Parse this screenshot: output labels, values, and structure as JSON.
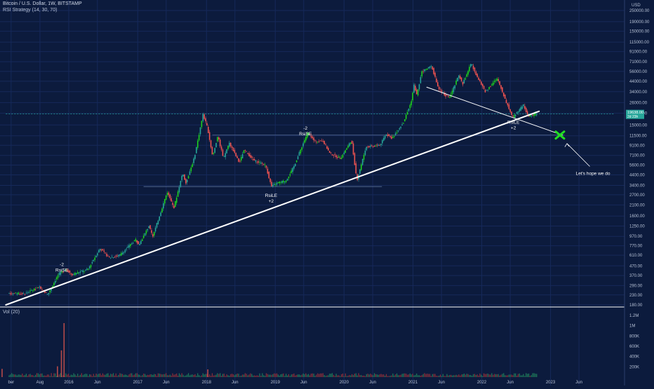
{
  "header": {
    "symbol_line": "Bitcoin / U.S. Dollar, 1W, BITSTAMP",
    "indicator_line": "RSI Strategy (14, 30, 70)"
  },
  "volume_label": "Vol (20)",
  "colors": {
    "background": "#0c1b3d",
    "grid": "#16295a",
    "up": "#26a69a",
    "up_bright": "#1dd21d",
    "down": "#ef5350",
    "trendline": "#ffffff",
    "price_tag": "#26a69a",
    "target_marker": "#22dd22"
  },
  "chart_data": {
    "type": "candlestick",
    "title": "Bitcoin / U.S. Dollar, 1W, BITSTAMP",
    "price_axis": {
      "currency": "USD",
      "scale": "log",
      "ticks": [
        "250000.00",
        "190000.00",
        "150000.00",
        "115000.00",
        "91000.00",
        "71000.00",
        "56000.00",
        "44000.00",
        "34000.00",
        "26000.00",
        "20000.00",
        "15000.00",
        "11500.00",
        "9100.00",
        "7100.00",
        "5600.00",
        "4400.00",
        "3400.00",
        "2700.00",
        "2100.00",
        "1600.00",
        "1250.00",
        "970.00",
        "770.00",
        "610.00",
        "470.00",
        "370.00",
        "290.00",
        "230.00",
        "180.00"
      ],
      "tick_values": [
        250000,
        190000,
        150000,
        115000,
        91000,
        71000,
        56000,
        44000,
        34000,
        26000,
        20000,
        15000,
        11500,
        9100,
        7100,
        5600,
        4400,
        3400,
        2700,
        2100,
        1600,
        1250,
        970,
        770,
        610,
        470,
        370,
        290,
        230,
        180
      ]
    },
    "volume_axis": {
      "ticks": [
        "1.2M",
        "1M",
        "800K",
        "600K",
        "400K",
        "200K"
      ],
      "tick_values": [
        1200000,
        1000000,
        800000,
        600000,
        400000,
        200000
      ]
    },
    "time_axis": {
      "labels": [
        "ber",
        "Aug",
        "2016",
        "Jun",
        "2017",
        "Jun",
        "2018",
        "Jun",
        "2019",
        "Jun",
        "2020",
        "Jun",
        "2021",
        "Jun",
        "2022",
        "Jun",
        "2023",
        "Jun"
      ],
      "label_dates": [
        "2015-03-01",
        "2015-08-01",
        "2016-01-01",
        "2016-06-01",
        "2017-01-01",
        "2017-06-01",
        "2018-01-01",
        "2018-06-01",
        "2019-01-01",
        "2019-06-01",
        "2020-01-01",
        "2020-06-01",
        "2021-01-01",
        "2021-06-01",
        "2022-01-01",
        "2022-06-01",
        "2023-01-01",
        "2023-06-01"
      ]
    },
    "last_price": "19638.00",
    "last_price_value": 19638,
    "countdown": "2d 23h",
    "price_path": [
      [
        "2015-02-15",
        240
      ],
      [
        "2015-05-15",
        236
      ],
      [
        "2015-08-01",
        280
      ],
      [
        "2015-09-15",
        232
      ],
      [
        "2015-11-10",
        380
      ],
      [
        "2015-12-20",
        430
      ],
      [
        "2016-01-20",
        380
      ],
      [
        "2016-04-15",
        430
      ],
      [
        "2016-06-18",
        720
      ],
      [
        "2016-08-05",
        575
      ],
      [
        "2016-10-01",
        610
      ],
      [
        "2016-12-25",
        900
      ],
      [
        "2017-01-10",
        780
      ],
      [
        "2017-03-05",
        1250
      ],
      [
        "2017-03-25",
        960
      ],
      [
        "2017-06-10",
        2900
      ],
      [
        "2017-07-15",
        1950
      ],
      [
        "2017-09-01",
        4700
      ],
      [
        "2017-09-15",
        3500
      ],
      [
        "2017-11-01",
        6700
      ],
      [
        "2017-12-17",
        19500
      ],
      [
        "2018-01-10",
        14000
      ],
      [
        "2018-02-06",
        6900
      ],
      [
        "2018-03-05",
        11400
      ],
      [
        "2018-04-05",
        6600
      ],
      [
        "2018-05-05",
        9700
      ],
      [
        "2018-06-28",
        5900
      ],
      [
        "2018-07-24",
        8200
      ],
      [
        "2018-09-10",
        6300
      ],
      [
        "2018-11-14",
        5600
      ],
      [
        "2018-12-15",
        3300
      ],
      [
        "2019-01-15",
        3600
      ],
      [
        "2019-03-01",
        3800
      ],
      [
        "2019-04-10",
        5200
      ],
      [
        "2019-06-26",
        12600
      ],
      [
        "2019-08-01",
        10000
      ],
      [
        "2019-09-15",
        10200
      ],
      [
        "2019-10-20",
        7500
      ],
      [
        "2019-12-17",
        6600
      ],
      [
        "2020-02-13",
        10300
      ],
      [
        "2020-03-13",
        3850
      ],
      [
        "2020-04-30",
        8700
      ],
      [
        "2020-07-15",
        9200
      ],
      [
        "2020-08-15",
        12000
      ],
      [
        "2020-09-15",
        10800
      ],
      [
        "2020-11-15",
        16000
      ],
      [
        "2020-12-25",
        26000
      ],
      [
        "2021-01-10",
        40000
      ],
      [
        "2021-01-25",
        31000
      ],
      [
        "2021-02-20",
        56000
      ],
      [
        "2021-04-14",
        63500
      ],
      [
        "2021-05-19",
        37000
      ],
      [
        "2021-06-22",
        31000
      ],
      [
        "2021-07-20",
        30000
      ],
      [
        "2021-09-05",
        51000
      ],
      [
        "2021-09-25",
        41000
      ],
      [
        "2021-11-10",
        68500
      ],
      [
        "2021-12-15",
        47000
      ],
      [
        "2022-01-24",
        34000
      ],
      [
        "2022-03-28",
        47500
      ],
      [
        "2022-05-12",
        27000
      ],
      [
        "2022-06-18",
        18000
      ],
      [
        "2022-08-14",
        24500
      ],
      [
        "2022-09-06",
        18600
      ],
      [
        "2022-10-20",
        19600
      ]
    ],
    "volume_spikes": [
      {
        "date": "2015-12-07",
        "value": 1050000
      },
      {
        "date": "2015-11-23",
        "value": 520000
      },
      {
        "date": "2015-11-02",
        "value": 210000
      },
      {
        "date": "2015-01-12",
        "value": 160000
      },
      {
        "date": "2018-01-08",
        "value": 150000
      }
    ],
    "volume_baseline": 60000,
    "annotations": [
      {
        "lines": [
          "-2",
          "RsiSE"
        ],
        "date": "2015-11-25",
        "price": 470
      },
      {
        "lines": [
          "-2",
          "RsiSE"
        ],
        "date": "2019-06-10",
        "price": 13400
      },
      {
        "lines": [
          "RsiLE",
          "+2"
        ],
        "date": "2018-12-10",
        "price": 2550
      },
      {
        "lines": [
          "RsiLE",
          "+2"
        ],
        "date": "2022-06-18",
        "price": 15500
      },
      {
        "lines": [
          "Let's hope we do"
        ],
        "date": "2023-05-15",
        "price": 4400
      }
    ],
    "trendlines": [
      {
        "from": {
          "date": "2015-02-01",
          "price": 180
        },
        "to": {
          "date": "2022-11-01",
          "price": 21000
        },
        "color": "#ffffff",
        "width": 2
      },
      {
        "from": {
          "date": "2021-03-15",
          "price": 38000
        },
        "to": {
          "date": "2023-03-05",
          "price": 11700
        },
        "color": "#ffffff",
        "width": 1
      }
    ],
    "horizontal_levels": [
      {
        "price": 3300,
        "from": "2017-02-01",
        "to": "2020-07-20"
      },
      {
        "price": 11700,
        "from": "2018-02-01",
        "to": "2023-03-15"
      },
      {
        "price": 19638,
        "from": "2015-02-01",
        "to": "2023-12-01"
      }
    ],
    "target": {
      "date": "2023-02-20",
      "price": 11700
    }
  }
}
